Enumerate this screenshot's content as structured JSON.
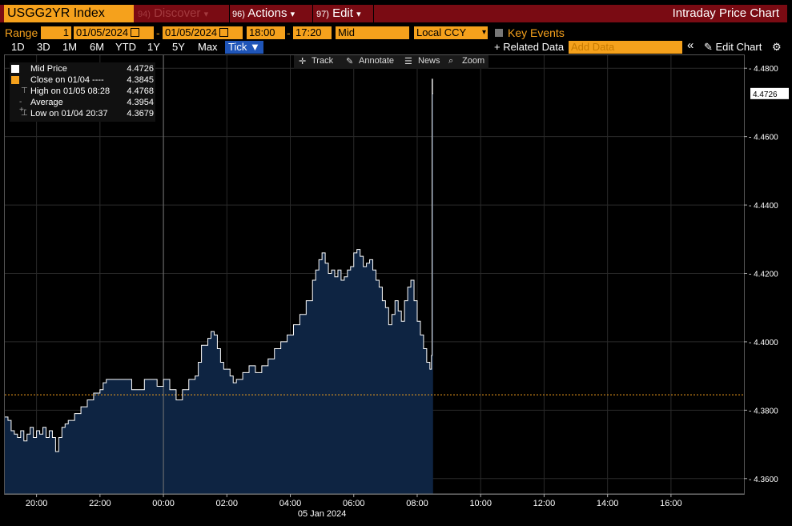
{
  "header": {
    "ticker": "USGG2YR Index",
    "menu_discover_num": "94)",
    "menu_discover": "Discover",
    "menu_actions_num": "96)",
    "menu_actions": "Actions",
    "menu_edit_num": "97)",
    "menu_edit": "Edit",
    "dropdown_glyph": "▾",
    "title": "Intraday Price Chart"
  },
  "controls": {
    "range_label": "Range",
    "range_value": "1",
    "start_date": "01/05/2024",
    "dash": "-",
    "end_date": "01/05/2024",
    "start_time": "18:00",
    "end_time": "17:20",
    "price_field": "Mid",
    "currency": "Local CCY",
    "key_events": "Key Events"
  },
  "periods": [
    "1D",
    "3D",
    "1M",
    "6M",
    "YTD",
    "1Y",
    "5Y",
    "Max"
  ],
  "tick_label": "Tick ▼",
  "related_data": "+ Related Data",
  "add_data_placeholder": "Add Data",
  "collapse_glyph": "«",
  "edit_chart": "✎ Edit Chart",
  "gear_glyph": "⚙",
  "chart_tools": {
    "track": "Track",
    "annotate": "Annotate",
    "news": "News",
    "zoom": "Zoom"
  },
  "legend": [
    {
      "name": "Mid Price",
      "value": "4.4726",
      "icon": "white-square"
    },
    {
      "name": "Close on 01/04 ----",
      "value": "4.3845",
      "icon": "orange-square"
    },
    {
      "name": "High on 01/05 08:28",
      "value": "4.4768",
      "icon": "high-marker"
    },
    {
      "name": "Average",
      "value": "4.3954",
      "icon": "average-marker"
    },
    {
      "name": "Low on 01/04 20:37",
      "value": "4.3679",
      "icon": "low-marker"
    }
  ],
  "colors": {
    "accent_orange": "#f5a11c",
    "header_red": "#7a0b13",
    "area_fill": "#0e2442",
    "line": "#ffffff",
    "close_line": "#f5a11c",
    "selected_tab": "#1f55b8"
  },
  "chart_data": {
    "type": "area",
    "y_ticks": [
      "4.3600",
      "4.3800",
      "4.4000",
      "4.4200",
      "4.4400",
      "4.4600",
      "4.4800"
    ],
    "ylim": [
      4.3555,
      4.4838
    ],
    "x_ticks": [
      "20:00",
      "22:00",
      "00:00",
      "02:00",
      "04:00",
      "06:00",
      "08:00",
      "10:00",
      "12:00",
      "14:00",
      "16:00"
    ],
    "x_date_label": "05 Jan 2024",
    "x_range_hours": [
      -5.0,
      18.3
    ],
    "last_price_label": "4.4726",
    "last_price": 4.4726,
    "close_prev": 4.3845,
    "session_divider_hours": 0,
    "series": [
      {
        "name": "Mid Price",
        "x_hours": [
          -5.0,
          -4.9,
          -4.8,
          -4.7,
          -4.6,
          -4.5,
          -4.4,
          -4.3,
          -4.2,
          -4.1,
          -4.0,
          -3.9,
          -3.8,
          -3.7,
          -3.6,
          -3.5,
          -3.4,
          -3.3,
          -3.2,
          -3.1,
          -3.0,
          -2.8,
          -2.6,
          -2.4,
          -2.2,
          -2.0,
          -1.9,
          -1.8,
          -1.7,
          -1.6,
          -1.5,
          -1.4,
          -1.3,
          -1.0,
          -0.8,
          -0.6,
          -0.4,
          -0.2,
          0.0,
          0.2,
          0.4,
          0.6,
          0.8,
          1.0,
          1.1,
          1.2,
          1.4,
          1.5,
          1.6,
          1.7,
          1.8,
          1.9,
          2.0,
          2.1,
          2.2,
          2.3,
          2.5,
          2.7,
          2.9,
          3.1,
          3.3,
          3.5,
          3.7,
          3.9,
          4.1,
          4.3,
          4.5,
          4.7,
          4.8,
          4.9,
          5.0,
          5.1,
          5.2,
          5.3,
          5.4,
          5.5,
          5.6,
          5.7,
          5.8,
          5.9,
          6.0,
          6.1,
          6.2,
          6.3,
          6.4,
          6.5,
          6.6,
          6.7,
          6.8,
          6.9,
          7.0,
          7.1,
          7.2,
          7.3,
          7.4,
          7.5,
          7.6,
          7.7,
          7.8,
          7.9,
          8.0,
          8.1,
          8.2,
          8.3,
          8.4,
          8.45,
          8.47,
          8.48,
          8.5
        ],
        "values": [
          4.378,
          4.377,
          4.374,
          4.373,
          4.372,
          4.374,
          4.371,
          4.373,
          4.375,
          4.372,
          4.374,
          4.373,
          4.375,
          4.372,
          4.374,
          4.372,
          4.3679,
          4.372,
          4.375,
          4.376,
          4.377,
          4.379,
          4.381,
          4.383,
          4.385,
          4.386,
          4.388,
          4.389,
          4.389,
          4.389,
          4.389,
          4.389,
          4.389,
          4.386,
          4.386,
          4.389,
          4.389,
          4.387,
          4.389,
          4.386,
          4.383,
          4.386,
          4.389,
          4.39,
          4.394,
          4.399,
          4.401,
          4.403,
          4.402,
          4.398,
          4.394,
          4.392,
          4.392,
          4.39,
          4.388,
          4.389,
          4.391,
          4.393,
          4.391,
          4.393,
          4.395,
          4.398,
          4.4,
          4.402,
          4.405,
          4.408,
          4.412,
          4.418,
          4.421,
          4.424,
          4.426,
          4.423,
          4.42,
          4.421,
          4.419,
          4.421,
          4.418,
          4.419,
          4.421,
          4.422,
          4.426,
          4.427,
          4.425,
          4.422,
          4.423,
          4.424,
          4.421,
          4.418,
          4.416,
          4.412,
          4.41,
          4.405,
          4.408,
          4.412,
          4.409,
          4.406,
          4.412,
          4.416,
          4.418,
          4.412,
          4.406,
          4.402,
          4.398,
          4.394,
          4.392,
          4.396,
          4.4768,
          4.4726,
          4.4726
        ]
      }
    ]
  }
}
